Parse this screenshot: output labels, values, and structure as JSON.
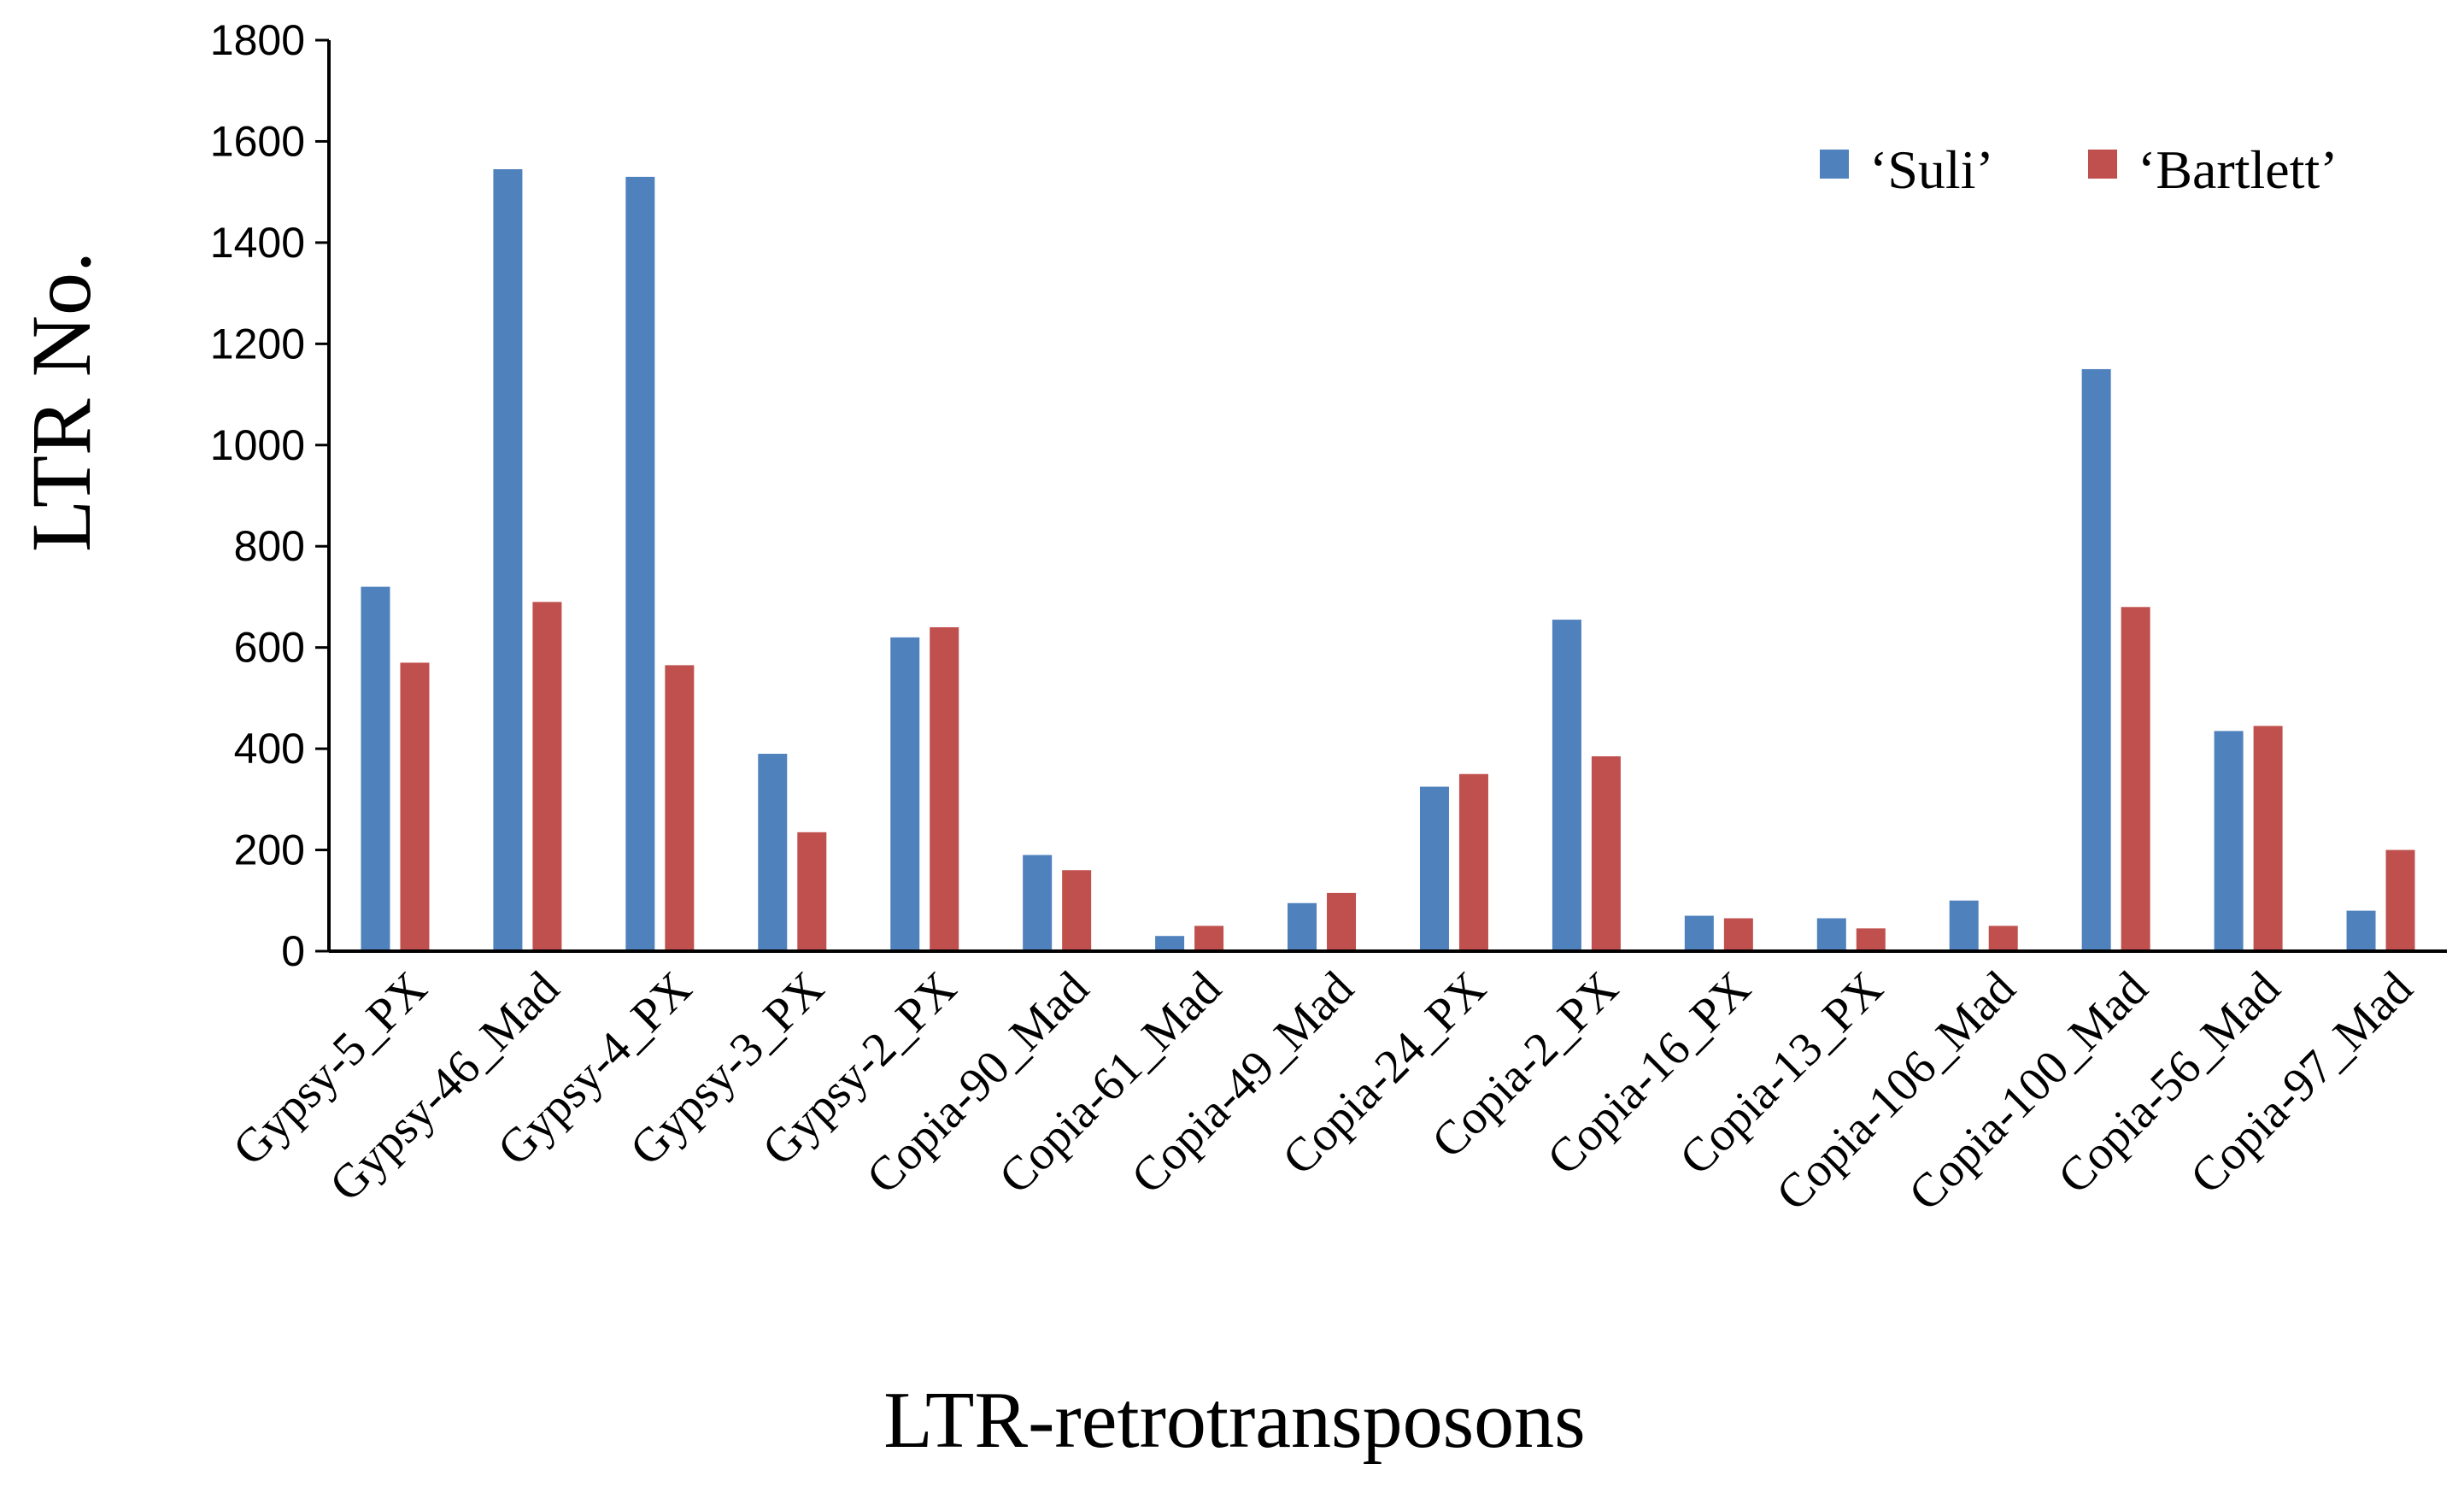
{
  "chart_data": {
    "type": "bar",
    "title": "",
    "xlabel": "LTR-retrotransposons",
    "ylabel": "LTR No.",
    "ylim": [
      0,
      1800
    ],
    "yticks": [
      "0",
      "200",
      "400",
      "600",
      "800",
      "1000",
      "1200",
      "1400",
      "1600",
      "1800"
    ],
    "grid": false,
    "legend_position": "top-right",
    "categories": [
      "Gypsy-5_PX",
      "Gypsy-46_Mad",
      "Gypsy-4_PX",
      "Gypsy-3_PX",
      "Gypsy-2_PX",
      "Copia-90_Mad",
      "Copia-61_Mad",
      "Copia-49_Mad",
      "Copia-24_PX",
      "Copia-2_PX",
      "Copia-16_PX",
      "Copia-13_PX",
      "Copia-106_Mad",
      "Copia-100_Mad",
      "Copia-56_Mad",
      "Copia-97_Mad"
    ],
    "series": [
      {
        "name": "‘Suli’",
        "color": "#4f81bd",
        "values": [
          720,
          1545,
          1530,
          390,
          620,
          190,
          30,
          95,
          325,
          655,
          70,
          65,
          100,
          1150,
          435,
          80
        ]
      },
      {
        "name": "‘Bartlett’",
        "color": "#c0504d",
        "values": [
          570,
          690,
          565,
          235,
          640,
          160,
          50,
          115,
          350,
          385,
          65,
          45,
          50,
          680,
          445,
          200
        ]
      }
    ]
  }
}
